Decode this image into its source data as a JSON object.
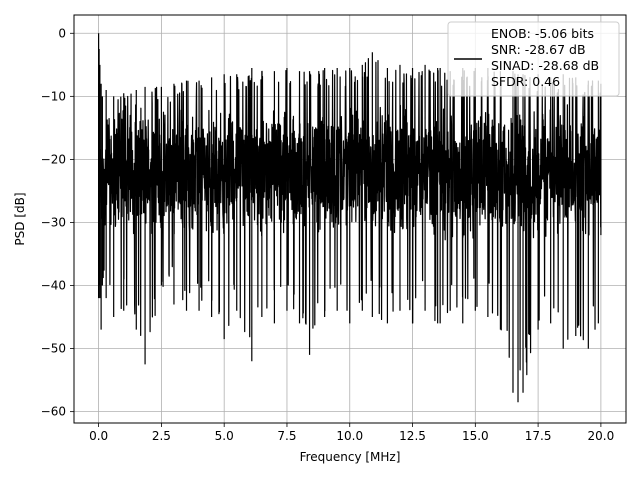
{
  "chart_data": {
    "type": "line",
    "title": "",
    "xlabel": "Frequency [MHz]",
    "ylabel": "PSD [dB]",
    "xlim": [
      -0.98,
      21.0
    ],
    "ylim": [
      -61.8,
      2.9
    ],
    "xticks": [
      0.0,
      2.5,
      5.0,
      7.5,
      10.0,
      12.5,
      15.0,
      17.5,
      20.0
    ],
    "xtick_labels": [
      "0.0",
      "2.5",
      "5.0",
      "7.5",
      "10.0",
      "12.5",
      "15.0",
      "17.5",
      "20.0"
    ],
    "yticks": [
      0,
      -10,
      -20,
      -30,
      -40,
      -50,
      -60
    ],
    "ytick_labels": [
      "0",
      "−10",
      "−20",
      "−30",
      "−40",
      "−50",
      "−60"
    ],
    "grid": true,
    "line_color": "#000000",
    "legend_position": "upper right",
    "legend_lines": [
      "ENOB: -5.06 bits",
      "SNR: -28.67 dB",
      "SINAD: -28.68 dB",
      "SFDR: 0.46"
    ],
    "series": [
      {
        "x": [
          0.0,
          0.02,
          0.05,
          0.1,
          0.15,
          0.3,
          0.6,
          1.0,
          1.5,
          1.85,
          2.5,
          3.0,
          3.5,
          4.0,
          4.5,
          5.0,
          5.5,
          6.1,
          6.5,
          7.0,
          7.5,
          8.0,
          8.4,
          9.0,
          9.5,
          10.0,
          10.5,
          10.9,
          11.5,
          12.0,
          12.5,
          13.0,
          13.5,
          13.6,
          14.0,
          14.5,
          15.0,
          15.5,
          16.0,
          16.5,
          16.7,
          16.9,
          17.5,
          18.0,
          18.5,
          19.0,
          19.5,
          19.9,
          20.0
        ],
        "top": [
          0,
          -2.5,
          -5,
          -8,
          -10,
          -9,
          -10,
          -9.5,
          -9,
          -8.5,
          -8.5,
          -8,
          -7.5,
          -7.5,
          -7,
          -6.5,
          -6.5,
          -5.5,
          -6,
          -6,
          -5.5,
          -6,
          -6,
          -5.5,
          -5.5,
          -5.5,
          -5,
          -3,
          -5.5,
          -5,
          -5.5,
          -5,
          -5.5,
          -5.5,
          -6,
          -5.5,
          -5.5,
          -5.5,
          -6,
          -6,
          -6.5,
          -6.5,
          -6.5,
          -7,
          -6.5,
          -7,
          -7.5,
          -7.5,
          -8
        ],
        "bottom": [
          -42,
          -40,
          -42,
          -47,
          -40,
          -42,
          -45,
          -44,
          -47,
          -52.5,
          -40,
          -43,
          -44,
          -44,
          -45,
          -48.5,
          -44,
          -52,
          -45,
          -46,
          -44,
          -46,
          -51,
          -45,
          -44,
          -46,
          -44,
          -45,
          -46,
          -44,
          -46,
          -44,
          -46,
          -46,
          -44,
          -46,
          -44,
          -45,
          -47,
          -57,
          -58.5,
          -57,
          -47,
          -46,
          -50,
          -48,
          -50,
          -46,
          -32
        ]
      }
    ]
  }
}
